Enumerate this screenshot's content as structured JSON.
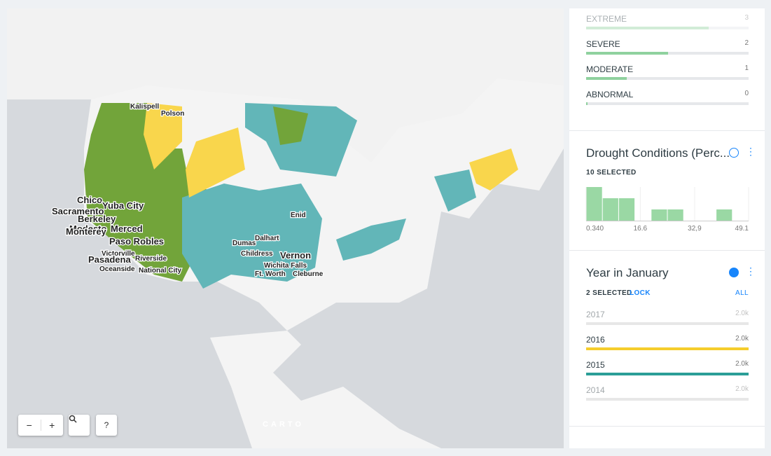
{
  "map": {
    "labels": [
      "Kalispell",
      "Polson",
      "Chico",
      "Yuba City",
      "Sacramento",
      "Berkeley",
      "Modesto",
      "Merced",
      "Monterey",
      "Paso Robles",
      "Victorville",
      "Riverside",
      "Pasadena",
      "Oceanside",
      "National City",
      "Dalhart",
      "Enid",
      "Dumas",
      "Childress",
      "Vernon",
      "Wichita Falls",
      "Ft. Worth",
      "Cleburne"
    ],
    "attribution": "CARTO",
    "help": "?"
  },
  "category_widget": {
    "items": [
      {
        "label": "EXTREME",
        "count": 3
      },
      {
        "label": "SEVERE",
        "count": 2
      },
      {
        "label": "MODERATE",
        "count": 1
      },
      {
        "label": "ABNORMAL",
        "count": 0
      }
    ]
  },
  "histogram_widget": {
    "title": "Drought Conditions (Perc...",
    "selected": "10 SELECTED",
    "bins": [
      0.34,
      5.216,
      10.092,
      14.968,
      19.844,
      24.72,
      29.596,
      34.472,
      39.348,
      44.224,
      49.1
    ],
    "counts": [
      3,
      2,
      2,
      0,
      1,
      1,
      0,
      0,
      1,
      0
    ],
    "xlim": [
      0.34,
      49.1
    ],
    "xticks": [
      {
        "value": 0.34,
        "label": "0.340"
      },
      16.6,
      {
        "value": 32.9,
        "label": "32,9"
      },
      49.1
    ]
  },
  "year_widget": {
    "title": "Year in January",
    "selected": "2 SELECTED",
    "lock": "LOCK",
    "all": "ALL",
    "items": [
      {
        "label": "2017",
        "count": "2.0k"
      },
      {
        "label": "2016",
        "count": "2.0k"
      },
      {
        "label": "2015",
        "count": "2.0k"
      },
      {
        "label": "2014",
        "count": "2.0k"
      }
    ]
  }
}
